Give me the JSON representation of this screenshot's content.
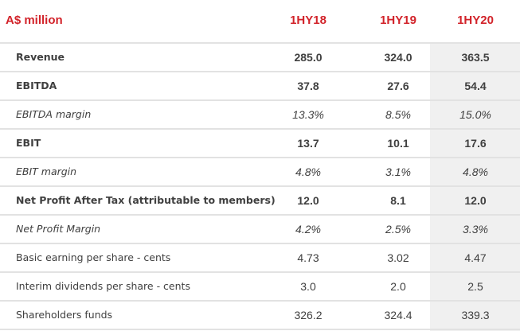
{
  "header": {
    "unit": "A$ million",
    "periods": [
      "1HY18",
      "1HY19",
      "1HY20"
    ]
  },
  "colors": {
    "accent": "#d2232a",
    "highlight_column": "#f0f0f0"
  },
  "rows": [
    {
      "label": "Revenue",
      "values": [
        "285.0",
        "324.0",
        "363.5"
      ],
      "style": "bold"
    },
    {
      "label": "EBITDA",
      "values": [
        "37.8",
        "27.6",
        "54.4"
      ],
      "style": "bold"
    },
    {
      "label": "EBITDA margin",
      "values": [
        "13.3%",
        "8.5%",
        "15.0%"
      ],
      "style": "ital"
    },
    {
      "label": "EBIT",
      "values": [
        "13.7",
        "10.1",
        "17.6"
      ],
      "style": "bold"
    },
    {
      "label": "EBIT margin",
      "values": [
        "4.8%",
        "3.1%",
        "4.8%"
      ],
      "style": "ital"
    },
    {
      "label": "Net Profit After Tax (attributable to members)",
      "values": [
        "12.0",
        "8.1",
        "12.0"
      ],
      "style": "bold"
    },
    {
      "label": "Net Profit Margin",
      "values": [
        "4.2%",
        "2.5%",
        "3.3%"
      ],
      "style": "ital"
    },
    {
      "label": "Basic earning per share - cents",
      "values": [
        "4.73",
        "3.02",
        "4.47"
      ],
      "style": "plain"
    },
    {
      "label": "Interim dividends per share - cents",
      "values": [
        "3.0",
        "2.0",
        "2.5"
      ],
      "style": "plain"
    },
    {
      "label": "Shareholders funds",
      "values": [
        "326.2",
        "324.4",
        "339.3"
      ],
      "style": "plain"
    }
  ]
}
